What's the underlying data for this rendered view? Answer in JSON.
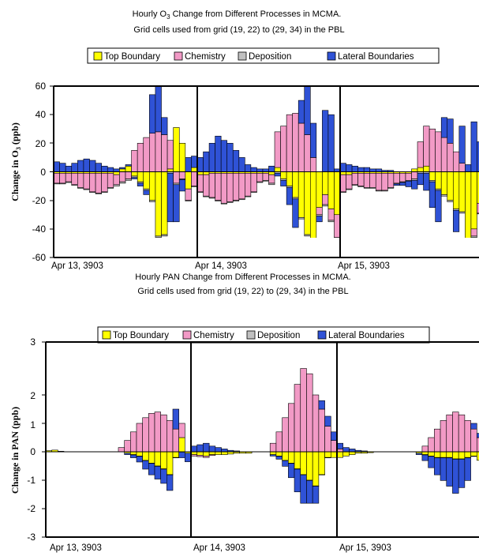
{
  "colors": {
    "top_boundary": "#ffff00",
    "chemistry": "#f29ac6",
    "deposition": "#c0c0c0",
    "lateral_boundaries": "#2f52d6"
  },
  "chart_data": [
    {
      "type": "bar",
      "stacked": true,
      "title_line1_pre": "Hourly O",
      "title_line1_sub": "3",
      "title_line1_post": " Change from Different Processes in MCMA.",
      "title_line2": "Grid cells used from grid (19, 22) to (29, 34) in the PBL",
      "ylabel_pre": "Change in O",
      "ylabel_sub": "3",
      "ylabel_post": " (ppb)",
      "ylim": [
        -60,
        60
      ],
      "yticks": [
        "60",
        "40",
        "20",
        "0",
        "-20",
        "-40",
        "-60"
      ],
      "date_labels": [
        "Apr 13, 3903",
        "Apr 14, 3903",
        "Apr 15, 3903"
      ],
      "legend": [
        "Top Boundary",
        "Chemistry",
        "Deposition",
        "Lateral Boundaries"
      ],
      "legend_placement": "top",
      "hours_per_day": 24,
      "series": [
        {
          "name": "Top Boundary",
          "values": [
            -1,
            -1,
            -1,
            -1,
            -1,
            -1,
            -1,
            -1,
            -1,
            -1,
            -2,
            2,
            4,
            -3,
            -7,
            -12,
            -20,
            -45,
            -44,
            2,
            31,
            20,
            -12,
            3,
            -2,
            -2,
            -1,
            -1,
            -1,
            -1,
            -1,
            -1,
            -1,
            -1,
            -1,
            -1,
            -2,
            3,
            -5,
            -10,
            -18,
            -32,
            -44,
            -54,
            -25,
            -16,
            -26,
            -30,
            -2,
            -2,
            -1,
            -1,
            -1,
            -1,
            -1,
            -1,
            -1,
            -1,
            -1,
            -1,
            2,
            3,
            4,
            -6,
            -12,
            -16,
            -20,
            -26,
            -28,
            -48,
            -40,
            -22
          ]
        },
        {
          "name": "Chemistry",
          "values": [
            -7,
            -7,
            -6,
            -8,
            -10,
            -11,
            -13,
            -14,
            -13,
            -10,
            -7,
            -7,
            -5,
            15,
            20,
            24,
            27,
            28,
            26,
            20,
            -8,
            -5,
            -8,
            -10,
            -12,
            -15,
            -17,
            -19,
            -21,
            -20,
            -19,
            -18,
            -16,
            -13,
            -6,
            -5,
            -6,
            25,
            32,
            40,
            41,
            34,
            26,
            10,
            -5,
            -7,
            -8,
            -16,
            -12,
            -10,
            -8,
            -9,
            -10,
            -10,
            -12,
            -12,
            -10,
            -7,
            -6,
            -5,
            -5,
            18,
            28,
            30,
            28,
            24,
            20,
            14,
            6,
            -5,
            -5,
            -7
          ]
        },
        {
          "name": "Deposition",
          "values": [
            -0.5,
            -0.5,
            -0.5,
            -0.5,
            -0.5,
            -0.5,
            -0.5,
            -0.5,
            -0.5,
            -0.5,
            -1,
            -1,
            -1,
            -1,
            -1,
            -1,
            -1,
            -1,
            -1,
            -1,
            -1,
            -0.5,
            -0.5,
            -0.5,
            -0.5,
            -0.5,
            -0.5,
            -0.5,
            -0.5,
            -0.5,
            -0.5,
            -0.5,
            -0.5,
            -0.5,
            -0.5,
            -0.5,
            -1,
            -1,
            -1,
            -1,
            -1,
            -1,
            -1,
            -1,
            -1,
            -1,
            -1,
            -1,
            -0.5,
            -0.5,
            -0.5,
            -0.5,
            -0.5,
            -0.5,
            -0.5,
            -0.5,
            -0.5,
            -0.5,
            -0.5,
            -0.5,
            -1,
            -1,
            -1,
            -1,
            -1,
            -1,
            -1,
            -1,
            -1,
            -1,
            -1,
            -0.5
          ]
        },
        {
          "name": "Lateral Boundaries",
          "values": [
            7,
            6,
            4,
            6,
            8,
            9,
            8,
            6,
            4,
            3,
            2,
            1,
            1,
            -1,
            -2,
            -3,
            27,
            35,
            12,
            -34,
            -26,
            -8,
            10,
            8,
            10,
            14,
            20,
            25,
            22,
            20,
            15,
            10,
            5,
            3,
            2,
            2,
            4,
            -2,
            -4,
            -12,
            -20,
            16,
            36,
            24,
            -4,
            43,
            40,
            2,
            6,
            5,
            4,
            3,
            3,
            2,
            2,
            1,
            1,
            -1,
            -2,
            -4,
            -6,
            -8,
            -12,
            -18,
            -22,
            14,
            17,
            -15,
            26,
            5,
            35,
            21
          ]
        }
      ]
    },
    {
      "type": "bar",
      "stacked": true,
      "title_line1": "Hourly PAN Change from Different Processes in MCMA.",
      "title_line2": "Grid cells used from grid (19, 22) to (29, 34) in the PBL",
      "ylabel": "Change in PAN (ppb)",
      "ylim": [
        -3,
        3
      ],
      "yticks": [
        "3",
        "2",
        "1",
        "0",
        "-1",
        "-2",
        "-3"
      ],
      "date_labels": [
        "Apr 13, 3903",
        "Apr 14, 3903",
        "Apr 15, 3903"
      ],
      "legend": [
        "Top Boundary",
        "Chemistry",
        "Deposition",
        "Lateral Boundaries"
      ],
      "legend_placement": "top",
      "hours_per_day": 24,
      "series": [
        {
          "name": "Top Boundary",
          "values": [
            0.04,
            0.06,
            0.02,
            0,
            0,
            0,
            0,
            0,
            0,
            0,
            0,
            0,
            0,
            -0.05,
            -0.1,
            -0.15,
            -0.3,
            -0.4,
            -0.5,
            -0.6,
            -0.8,
            -0.2,
            0.5,
            -0.05,
            -0.1,
            -0.12,
            -0.15,
            -0.1,
            -0.1,
            -0.1,
            -0.08,
            -0.05,
            -0.05,
            -0.05,
            0,
            0,
            0,
            -0.1,
            -0.15,
            -0.3,
            -0.4,
            -0.6,
            -0.8,
            -1.0,
            -1.2,
            -0.8,
            -0.2,
            -0.2,
            -0.2,
            -0.15,
            -0.1,
            -0.05,
            -0.05,
            -0.03,
            0,
            0,
            0,
            0,
            0,
            0,
            0,
            -0.05,
            -0.1,
            -0.15,
            -0.2,
            -0.2,
            -0.2,
            -0.25,
            -0.25,
            -0.2,
            -0.15,
            -0.3
          ]
        },
        {
          "name": "Chemistry",
          "values": [
            0,
            0,
            0,
            0,
            0,
            0,
            0,
            0,
            0,
            0,
            0,
            0,
            0.15,
            0.4,
            0.7,
            1.0,
            1.2,
            1.35,
            1.4,
            1.3,
            1.1,
            0.8,
            0.5,
            0,
            -0.05,
            -0.05,
            -0.05,
            -0.03,
            0,
            0,
            0,
            0,
            0,
            0,
            0,
            0,
            0,
            0.3,
            0.7,
            1.2,
            1.7,
            2.2,
            2.5,
            2.4,
            2.0,
            1.5,
            0.9,
            0.4,
            0.1,
            0,
            0,
            0,
            0,
            0,
            0,
            0,
            0,
            0,
            0,
            0,
            0,
            0,
            0.2,
            0.5,
            0.8,
            1.1,
            1.3,
            1.4,
            1.3,
            1.1,
            0.8,
            0.5
          ]
        },
        {
          "name": "Deposition",
          "values": [
            0,
            0,
            0,
            0,
            0,
            0,
            0,
            0,
            0,
            0,
            0,
            0,
            0,
            0,
            -0.01,
            -0.01,
            -0.01,
            -0.01,
            -0.01,
            -0.01,
            -0.01,
            -0.01,
            -0.01,
            0,
            0,
            0,
            0,
            0,
            0,
            0,
            0,
            0,
            0,
            0,
            0,
            0,
            0,
            0,
            -0.01,
            -0.01,
            -0.01,
            -0.01,
            -0.01,
            -0.01,
            -0.01,
            -0.01,
            -0.01,
            0,
            0,
            0,
            0,
            0,
            0,
            0,
            0,
            0,
            0,
            0,
            0,
            0,
            0,
            0,
            -0.01,
            -0.01,
            -0.01,
            -0.01,
            -0.01,
            -0.01,
            -0.01,
            -0.01,
            -0.01,
            0
          ]
        },
        {
          "name": "Lateral Boundaries",
          "values": [
            0,
            0,
            0,
            0,
            0,
            0,
            0,
            0,
            0,
            0,
            0,
            0,
            0,
            -0.05,
            -0.1,
            -0.2,
            -0.3,
            -0.4,
            -0.45,
            -0.5,
            -0.55,
            0.7,
            -0.2,
            -0.3,
            0.2,
            0.25,
            0.3,
            0.2,
            0.15,
            0.1,
            0.05,
            0.03,
            0,
            0,
            0,
            0,
            0,
            -0.05,
            -0.1,
            -0.2,
            -0.5,
            -0.8,
            -1.0,
            -0.8,
            -0.6,
            0.3,
            0.35,
            0.3,
            0.2,
            0.15,
            0.1,
            0.05,
            0.03,
            0,
            0,
            0,
            0,
            0,
            0,
            0,
            0,
            -0.05,
            -0.2,
            -0.4,
            -0.6,
            -0.8,
            -1.0,
            -1.2,
            -1.0,
            -0.8,
            0.2,
            0.15
          ]
        }
      ]
    }
  ]
}
